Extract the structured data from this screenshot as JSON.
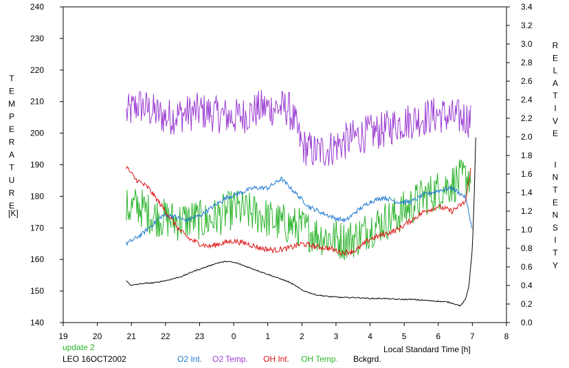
{
  "chart_data": {
    "type": "line",
    "left_axis_label": "TEMPERATURE",
    "left_axis_unit": "[K]",
    "right_axis_label": "RELATIVE INTENSITY",
    "xlabel": "Local Standard Time [h]",
    "update_note": "update 2",
    "site_date": "LEO 16OCT2002",
    "x_ticks": [
      "19",
      "20",
      "21",
      "22",
      "23",
      "0",
      "1",
      "2",
      "3",
      "4",
      "5",
      "6",
      "7",
      "8"
    ],
    "xlim": [
      19,
      32
    ],
    "y_left_ticks": [
      "140",
      "150",
      "160",
      "170",
      "180",
      "190",
      "200",
      "210",
      "220",
      "230",
      "240"
    ],
    "ylim_left": [
      140,
      240
    ],
    "y_right_ticks": [
      "0.0",
      "0.2",
      "0.4",
      "0.6",
      "0.8",
      "1.0",
      "1.2",
      "1.4",
      "1.6",
      "1.8",
      "2.0",
      "2.2",
      "2.4",
      "2.6",
      "2.8",
      "3.0",
      "3.2",
      "3.4"
    ],
    "ylim_right": [
      0,
      3.4
    ],
    "grid": false,
    "legend_position": "bottom",
    "series": [
      {
        "name": "O2 Int.",
        "axis": "right",
        "color": "#1e78d2",
        "noise": 0.025,
        "x": [
          20.85,
          21.0,
          21.3,
          21.6,
          21.9,
          22.2,
          22.6,
          23.0,
          23.4,
          23.8,
          24.2,
          24.6,
          25.0,
          25.4,
          25.8,
          26.2,
          26.6,
          27.0,
          27.3,
          27.6,
          28.0,
          28.4,
          28.8,
          29.2,
          29.6,
          30.0,
          30.4,
          30.8,
          31.0
        ],
        "y": [
          0.85,
          0.88,
          0.95,
          1.05,
          1.15,
          1.15,
          1.1,
          1.15,
          1.25,
          1.35,
          1.4,
          1.45,
          1.45,
          1.55,
          1.4,
          1.25,
          1.18,
          1.12,
          1.1,
          1.2,
          1.3,
          1.35,
          1.3,
          1.3,
          1.38,
          1.42,
          1.45,
          1.35,
          1.0
        ]
      },
      {
        "name": "O2 Temp.",
        "axis": "left",
        "color": "#9b3cd2",
        "noise": 6,
        "x": [
          20.85,
          21.2,
          21.6,
          22.0,
          22.5,
          23.0,
          23.5,
          24.0,
          24.4,
          24.8,
          25.2,
          25.6,
          25.8,
          26.0,
          26.4,
          26.8,
          27.2,
          27.6,
          28.0,
          28.4,
          28.8,
          29.2,
          29.6,
          30.0,
          30.4,
          30.8,
          30.95
        ],
        "y": [
          206,
          209,
          207,
          205,
          206,
          207,
          206,
          205,
          206,
          208,
          208,
          208,
          203,
          196,
          194,
          195,
          197,
          199,
          200,
          201,
          203,
          204,
          205,
          206,
          205,
          205,
          204
        ]
      },
      {
        "name": "OH Int.",
        "axis": "right",
        "color": "#dc1414",
        "noise": 0.03,
        "x": [
          20.85,
          21.1,
          21.5,
          21.8,
          22.1,
          22.4,
          22.7,
          23.0,
          23.3,
          23.6,
          24.0,
          24.4,
          24.8,
          25.2,
          25.6,
          26.0,
          26.4,
          26.8,
          27.2,
          27.6,
          28.0,
          28.4,
          28.8,
          29.2,
          29.6,
          30.0,
          30.4,
          30.8,
          30.95
        ],
        "y": [
          1.68,
          1.55,
          1.45,
          1.3,
          1.15,
          1.0,
          0.9,
          0.85,
          0.82,
          0.85,
          0.88,
          0.85,
          0.8,
          0.78,
          0.8,
          0.85,
          0.82,
          0.8,
          0.75,
          0.78,
          0.9,
          0.95,
          1.0,
          1.1,
          1.2,
          1.25,
          1.2,
          1.3,
          1.65
        ]
      },
      {
        "name": "OH Temp.",
        "axis": "left",
        "color": "#2cb42c",
        "noise": 6.5,
        "x": [
          20.85,
          21.2,
          21.6,
          22.0,
          22.4,
          22.8,
          23.2,
          23.6,
          24.0,
          24.4,
          24.8,
          25.2,
          25.6,
          26.0,
          26.4,
          26.8,
          27.2,
          27.6,
          28.0,
          28.4,
          28.8,
          29.2,
          29.6,
          30.0,
          30.4,
          30.8,
          30.95
        ],
        "y": [
          176,
          177,
          174,
          173,
          172,
          173,
          172,
          174,
          176,
          175,
          174,
          172,
          171,
          170,
          168,
          167,
          166,
          167,
          170,
          172,
          174,
          177,
          180,
          182,
          184,
          186,
          187
        ]
      },
      {
        "name": "Bckgrd.",
        "axis": "right",
        "color": "#000000",
        "noise": 0.006,
        "x": [
          20.85,
          21.0,
          21.3,
          21.7,
          22.1,
          22.5,
          22.8,
          23.2,
          23.5,
          23.8,
          24.1,
          24.4,
          24.7,
          25.0,
          25.3,
          25.6,
          25.8,
          26.0,
          26.4,
          26.8,
          27.2,
          27.6,
          28.0,
          28.4,
          28.8,
          29.2,
          29.6,
          30.0,
          30.3,
          30.5,
          30.65,
          30.8,
          30.9,
          31.0,
          31.05,
          31.1
        ],
        "y": [
          0.45,
          0.4,
          0.42,
          0.43,
          0.46,
          0.5,
          0.55,
          0.6,
          0.64,
          0.66,
          0.64,
          0.6,
          0.56,
          0.52,
          0.48,
          0.44,
          0.4,
          0.35,
          0.3,
          0.28,
          0.27,
          0.27,
          0.26,
          0.26,
          0.25,
          0.25,
          0.24,
          0.23,
          0.22,
          0.2,
          0.18,
          0.25,
          0.4,
          0.8,
          1.3,
          1.99
        ]
      }
    ]
  }
}
